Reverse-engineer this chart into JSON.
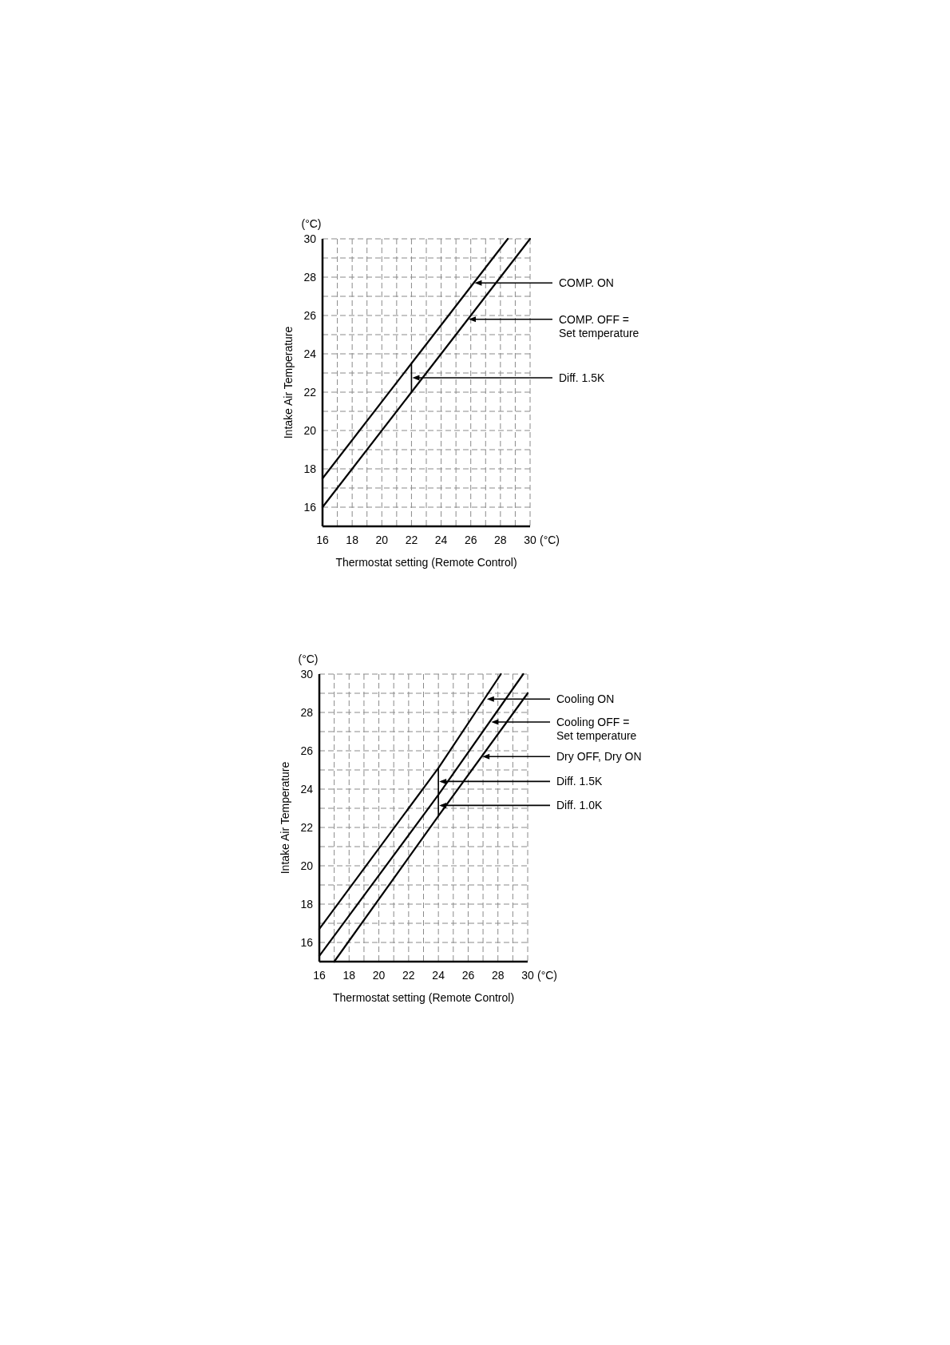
{
  "chart_data": [
    {
      "type": "line",
      "xlabel": "Thermostat setting (Remote Control)",
      "ylabel": "Intake Air Temperature",
      "xlim": [
        16,
        30
      ],
      "ylim": [
        15,
        30
      ],
      "xticks": [
        16,
        {
          "value": 17,
          "label": null
        },
        18,
        {
          "value": 19,
          "label": null
        },
        20,
        {
          "value": 21,
          "label": null
        },
        22,
        {
          "value": 23,
          "label": null
        },
        24,
        {
          "value": 25,
          "label": null
        },
        26,
        {
          "value": 27,
          "label": null
        },
        28,
        {
          "value": 29,
          "label": null
        },
        30
      ],
      "yticks": [
        16,
        {
          "value": 17,
          "label": null
        },
        18,
        {
          "value": 19,
          "label": null
        },
        20,
        {
          "value": 21,
          "label": null
        },
        22,
        {
          "value": 23,
          "label": null
        },
        24,
        {
          "value": 25,
          "label": null
        },
        26,
        {
          "value": 27,
          "label": null
        },
        28,
        {
          "value": 29,
          "label": null
        },
        30
      ],
      "grid": true,
      "line_style": "solid",
      "series": [
        {
          "color": "#000000",
          "x": [
            16,
            22,
            28.5
          ],
          "values": [
            17.5,
            23.5,
            30
          ]
        },
        {
          "color": "#000000",
          "x": [
            16,
            22,
            30
          ],
          "values": [
            16,
            22,
            30
          ]
        }
      ],
      "annotations": [
        "(°C)",
        "(°C)",
        {
          "text": "COMP. ON",
          "x": 26.2,
          "y": 27.7
        },
        {
          "text": "COMP. OFF =\nSet temperature",
          "x": 25.8,
          "y": 25.8
        },
        "Diff. 1.5K"
      ]
    },
    {
      "type": "line",
      "xlabel": "Thermostat setting (Remote Control)",
      "ylabel": "Intake Air Temperature",
      "xlim": [
        16,
        30
      ],
      "ylim": [
        15,
        30
      ],
      "xticks": [
        16,
        {
          "value": 17,
          "label": null
        },
        18,
        {
          "value": 19,
          "label": null
        },
        20,
        {
          "value": 21,
          "label": null
        },
        22,
        {
          "value": 23,
          "label": null
        },
        24,
        {
          "value": 25,
          "label": null
        },
        26,
        {
          "value": 27,
          "label": null
        },
        28,
        {
          "value": 29,
          "label": null
        },
        30
      ],
      "yticks": [
        16,
        {
          "value": 17,
          "label": null
        },
        18,
        {
          "value": 19,
          "label": null
        },
        20,
        {
          "value": 21,
          "label": null
        },
        22,
        {
          "value": 23,
          "label": null
        },
        24,
        {
          "value": 25,
          "label": null
        },
        26,
        {
          "value": 27,
          "label": null
        },
        28,
        {
          "value": 29,
          "label": null
        },
        30
      ],
      "grid": true,
      "line_style": "solid",
      "series": [
        {
          "color": "#000000",
          "x": [
            16,
            24,
            28.2
          ],
          "values": [
            16.7,
            25.1,
            30
          ]
        },
        {
          "color": "#000000",
          "x": [
            16,
            24,
            29.7
          ],
          "values": [
            15.3,
            23.7,
            30
          ]
        },
        {
          "color": "#000000",
          "x": [
            17,
            24,
            30
          ],
          "values": [
            15,
            22.6,
            29
          ]
        }
      ],
      "annotations": [
        "(°C)",
        "(°C)",
        {
          "text": "Cooling ON",
          "x": 27.2,
          "y": 28.7
        },
        {
          "text": "Cooling OFF =\nSet temperature",
          "x": 27.5,
          "y": 27.5
        },
        {
          "text": "Dry OFF, Dry ON",
          "x": 26.9,
          "y": 25.7
        },
        "Diff. 1.5K",
        "Diff. 1.0K"
      ]
    }
  ]
}
